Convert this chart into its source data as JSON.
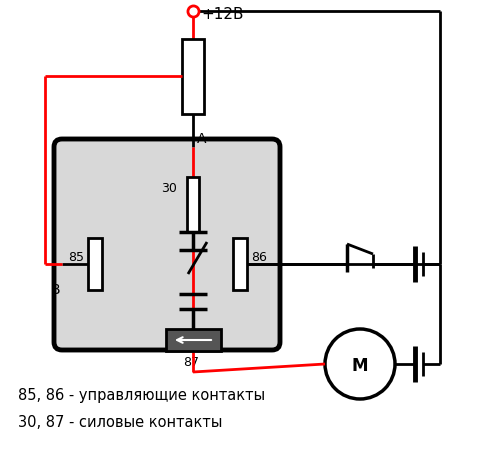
{
  "bg_color": "#ffffff",
  "label_85_86": "85, 86 - управляющие контакты",
  "label_30_87": "30, 87 - силовые контакты",
  "title_voltage": "+12В",
  "figsize": [
    4.84,
    4.6
  ],
  "dpi": 100
}
